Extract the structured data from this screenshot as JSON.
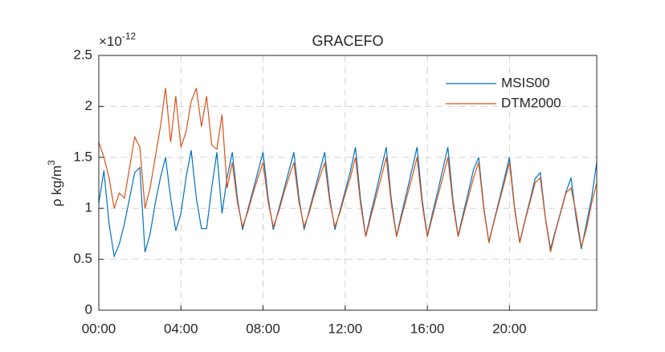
{
  "chart_data": {
    "type": "line",
    "title": "GRACEFO",
    "ylabel": {
      "text": "ρ  kg/m",
      "superscript": "3"
    },
    "y_exponent": {
      "base": "×10",
      "power": "-12"
    },
    "x": [
      0,
      0.25,
      0.5,
      0.75,
      1,
      1.25,
      1.5,
      1.75,
      2,
      2.25,
      2.5,
      2.75,
      3,
      3.25,
      3.5,
      3.75,
      4,
      4.25,
      4.5,
      4.75,
      5,
      5.25,
      5.5,
      5.75,
      6,
      6.25,
      6.5,
      6.75,
      7,
      7.25,
      7.5,
      7.75,
      8,
      8.25,
      8.5,
      8.75,
      9,
      9.25,
      9.5,
      9.75,
      10,
      10.25,
      10.5,
      10.75,
      11,
      11.25,
      11.5,
      11.75,
      12,
      12.25,
      12.5,
      12.75,
      13,
      13.25,
      13.5,
      13.75,
      14,
      14.25,
      14.5,
      14.75,
      15,
      15.25,
      15.5,
      15.75,
      16,
      16.25,
      16.5,
      16.75,
      17,
      17.25,
      17.5,
      17.75,
      18,
      18.25,
      18.5,
      18.75,
      19,
      19.25,
      19.5,
      19.75,
      20,
      20.25,
      20.5,
      20.75,
      21,
      21.25,
      21.5,
      21.75,
      22,
      22.25,
      22.5,
      22.75,
      23,
      23.25,
      23.5,
      23.75,
      24,
      24.25
    ],
    "series": [
      {
        "name": "MSIS00",
        "color": "#0072BD",
        "values": [
          1.05,
          1.37,
          0.85,
          0.53,
          0.65,
          0.85,
          1.1,
          1.35,
          1.4,
          0.57,
          0.75,
          1.05,
          1.3,
          1.5,
          1.1,
          0.78,
          0.95,
          1.3,
          1.57,
          1.1,
          0.8,
          0.8,
          1.2,
          1.55,
          0.95,
          1.3,
          1.55,
          1.1,
          0.79,
          0.98,
          1.17,
          1.36,
          1.55,
          1.1,
          0.79,
          0.98,
          1.17,
          1.36,
          1.55,
          1.1,
          0.79,
          0.98,
          1.17,
          1.36,
          1.55,
          1.1,
          0.79,
          0.98,
          1.17,
          1.36,
          1.6,
          1.08,
          0.73,
          0.95,
          1.16,
          1.38,
          1.6,
          1.08,
          0.73,
          0.95,
          1.16,
          1.38,
          1.6,
          1.08,
          0.73,
          0.95,
          1.16,
          1.38,
          1.6,
          1.08,
          0.73,
          0.95,
          1.16,
          1.38,
          1.5,
          1.01,
          0.67,
          0.88,
          1.08,
          1.29,
          1.5,
          1.01,
          0.67,
          0.88,
          1.08,
          1.29,
          1.35,
          0.91,
          0.6,
          0.79,
          0.97,
          1.16,
          1.3,
          0.9,
          0.6,
          0.85,
          1.1,
          1.45
        ]
      },
      {
        "name": "DTM2000",
        "color": "#D95319",
        "values": [
          1.65,
          1.5,
          1.3,
          1.0,
          1.15,
          1.1,
          1.4,
          1.7,
          1.6,
          1.0,
          1.2,
          1.5,
          1.8,
          2.18,
          1.65,
          2.1,
          1.6,
          1.75,
          2.05,
          2.18,
          1.8,
          2.1,
          1.62,
          1.58,
          1.92,
          1.2,
          1.45,
          1.06,
          0.82,
          0.96,
          1.14,
          1.3,
          1.45,
          1.06,
          0.82,
          0.96,
          1.14,
          1.3,
          1.45,
          1.06,
          0.82,
          0.96,
          1.14,
          1.3,
          1.45,
          1.06,
          0.82,
          0.96,
          1.14,
          1.3,
          1.5,
          1.04,
          0.72,
          0.92,
          1.11,
          1.3,
          1.5,
          1.04,
          0.72,
          0.92,
          1.11,
          1.3,
          1.5,
          1.04,
          0.72,
          0.92,
          1.11,
          1.3,
          1.5,
          1.04,
          0.72,
          0.92,
          1.11,
          1.3,
          1.45,
          0.99,
          0.66,
          0.87,
          1.06,
          1.25,
          1.45,
          0.99,
          0.66,
          0.87,
          1.06,
          1.25,
          1.3,
          0.9,
          0.57,
          0.78,
          0.96,
          1.15,
          1.2,
          0.95,
          0.62,
          0.8,
          1.05,
          1.25
        ]
      }
    ],
    "xlim": [
      0,
      24.25
    ],
    "xticks": [
      {
        "value": 0,
        "label": "00:00"
      },
      {
        "value": 4,
        "label": "04:00"
      },
      {
        "value": 8,
        "label": "08:00"
      },
      {
        "value": 12,
        "label": "12:00"
      },
      {
        "value": 16,
        "label": "16:00"
      },
      {
        "value": 20,
        "label": "20:00"
      }
    ],
    "ylim": [
      0,
      2.5
    ],
    "yticks": [
      0,
      0.5,
      1,
      1.5,
      2,
      2.5
    ],
    "grid": true,
    "legend": "northeast"
  }
}
